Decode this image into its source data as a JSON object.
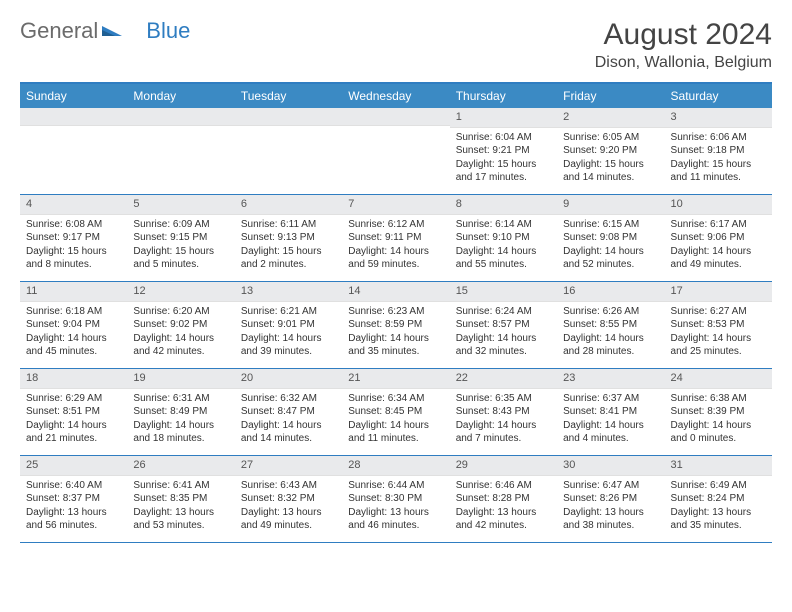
{
  "logo": {
    "part1": "General",
    "part2": "Blue"
  },
  "title": "August 2024",
  "location": "Dison, Wallonia, Belgium",
  "colors": {
    "header_bar": "#3b8ac4",
    "accent_border": "#2f7dc1",
    "daynum_bg": "#e9eaec",
    "text": "#333333",
    "logo_gray": "#6b6b6b",
    "logo_blue": "#2f7dc1"
  },
  "dow": [
    "Sunday",
    "Monday",
    "Tuesday",
    "Wednesday",
    "Thursday",
    "Friday",
    "Saturday"
  ],
  "weeks": [
    [
      {
        "n": "",
        "sr": "",
        "ss": "",
        "dl": ""
      },
      {
        "n": "",
        "sr": "",
        "ss": "",
        "dl": ""
      },
      {
        "n": "",
        "sr": "",
        "ss": "",
        "dl": ""
      },
      {
        "n": "",
        "sr": "",
        "ss": "",
        "dl": ""
      },
      {
        "n": "1",
        "sr": "Sunrise: 6:04 AM",
        "ss": "Sunset: 9:21 PM",
        "dl": "Daylight: 15 hours and 17 minutes."
      },
      {
        "n": "2",
        "sr": "Sunrise: 6:05 AM",
        "ss": "Sunset: 9:20 PM",
        "dl": "Daylight: 15 hours and 14 minutes."
      },
      {
        "n": "3",
        "sr": "Sunrise: 6:06 AM",
        "ss": "Sunset: 9:18 PM",
        "dl": "Daylight: 15 hours and 11 minutes."
      }
    ],
    [
      {
        "n": "4",
        "sr": "Sunrise: 6:08 AM",
        "ss": "Sunset: 9:17 PM",
        "dl": "Daylight: 15 hours and 8 minutes."
      },
      {
        "n": "5",
        "sr": "Sunrise: 6:09 AM",
        "ss": "Sunset: 9:15 PM",
        "dl": "Daylight: 15 hours and 5 minutes."
      },
      {
        "n": "6",
        "sr": "Sunrise: 6:11 AM",
        "ss": "Sunset: 9:13 PM",
        "dl": "Daylight: 15 hours and 2 minutes."
      },
      {
        "n": "7",
        "sr": "Sunrise: 6:12 AM",
        "ss": "Sunset: 9:11 PM",
        "dl": "Daylight: 14 hours and 59 minutes."
      },
      {
        "n": "8",
        "sr": "Sunrise: 6:14 AM",
        "ss": "Sunset: 9:10 PM",
        "dl": "Daylight: 14 hours and 55 minutes."
      },
      {
        "n": "9",
        "sr": "Sunrise: 6:15 AM",
        "ss": "Sunset: 9:08 PM",
        "dl": "Daylight: 14 hours and 52 minutes."
      },
      {
        "n": "10",
        "sr": "Sunrise: 6:17 AM",
        "ss": "Sunset: 9:06 PM",
        "dl": "Daylight: 14 hours and 49 minutes."
      }
    ],
    [
      {
        "n": "11",
        "sr": "Sunrise: 6:18 AM",
        "ss": "Sunset: 9:04 PM",
        "dl": "Daylight: 14 hours and 45 minutes."
      },
      {
        "n": "12",
        "sr": "Sunrise: 6:20 AM",
        "ss": "Sunset: 9:02 PM",
        "dl": "Daylight: 14 hours and 42 minutes."
      },
      {
        "n": "13",
        "sr": "Sunrise: 6:21 AM",
        "ss": "Sunset: 9:01 PM",
        "dl": "Daylight: 14 hours and 39 minutes."
      },
      {
        "n": "14",
        "sr": "Sunrise: 6:23 AM",
        "ss": "Sunset: 8:59 PM",
        "dl": "Daylight: 14 hours and 35 minutes."
      },
      {
        "n": "15",
        "sr": "Sunrise: 6:24 AM",
        "ss": "Sunset: 8:57 PM",
        "dl": "Daylight: 14 hours and 32 minutes."
      },
      {
        "n": "16",
        "sr": "Sunrise: 6:26 AM",
        "ss": "Sunset: 8:55 PM",
        "dl": "Daylight: 14 hours and 28 minutes."
      },
      {
        "n": "17",
        "sr": "Sunrise: 6:27 AM",
        "ss": "Sunset: 8:53 PM",
        "dl": "Daylight: 14 hours and 25 minutes."
      }
    ],
    [
      {
        "n": "18",
        "sr": "Sunrise: 6:29 AM",
        "ss": "Sunset: 8:51 PM",
        "dl": "Daylight: 14 hours and 21 minutes."
      },
      {
        "n": "19",
        "sr": "Sunrise: 6:31 AM",
        "ss": "Sunset: 8:49 PM",
        "dl": "Daylight: 14 hours and 18 minutes."
      },
      {
        "n": "20",
        "sr": "Sunrise: 6:32 AM",
        "ss": "Sunset: 8:47 PM",
        "dl": "Daylight: 14 hours and 14 minutes."
      },
      {
        "n": "21",
        "sr": "Sunrise: 6:34 AM",
        "ss": "Sunset: 8:45 PM",
        "dl": "Daylight: 14 hours and 11 minutes."
      },
      {
        "n": "22",
        "sr": "Sunrise: 6:35 AM",
        "ss": "Sunset: 8:43 PM",
        "dl": "Daylight: 14 hours and 7 minutes."
      },
      {
        "n": "23",
        "sr": "Sunrise: 6:37 AM",
        "ss": "Sunset: 8:41 PM",
        "dl": "Daylight: 14 hours and 4 minutes."
      },
      {
        "n": "24",
        "sr": "Sunrise: 6:38 AM",
        "ss": "Sunset: 8:39 PM",
        "dl": "Daylight: 14 hours and 0 minutes."
      }
    ],
    [
      {
        "n": "25",
        "sr": "Sunrise: 6:40 AM",
        "ss": "Sunset: 8:37 PM",
        "dl": "Daylight: 13 hours and 56 minutes."
      },
      {
        "n": "26",
        "sr": "Sunrise: 6:41 AM",
        "ss": "Sunset: 8:35 PM",
        "dl": "Daylight: 13 hours and 53 minutes."
      },
      {
        "n": "27",
        "sr": "Sunrise: 6:43 AM",
        "ss": "Sunset: 8:32 PM",
        "dl": "Daylight: 13 hours and 49 minutes."
      },
      {
        "n": "28",
        "sr": "Sunrise: 6:44 AM",
        "ss": "Sunset: 8:30 PM",
        "dl": "Daylight: 13 hours and 46 minutes."
      },
      {
        "n": "29",
        "sr": "Sunrise: 6:46 AM",
        "ss": "Sunset: 8:28 PM",
        "dl": "Daylight: 13 hours and 42 minutes."
      },
      {
        "n": "30",
        "sr": "Sunrise: 6:47 AM",
        "ss": "Sunset: 8:26 PM",
        "dl": "Daylight: 13 hours and 38 minutes."
      },
      {
        "n": "31",
        "sr": "Sunrise: 6:49 AM",
        "ss": "Sunset: 8:24 PM",
        "dl": "Daylight: 13 hours and 35 minutes."
      }
    ]
  ]
}
